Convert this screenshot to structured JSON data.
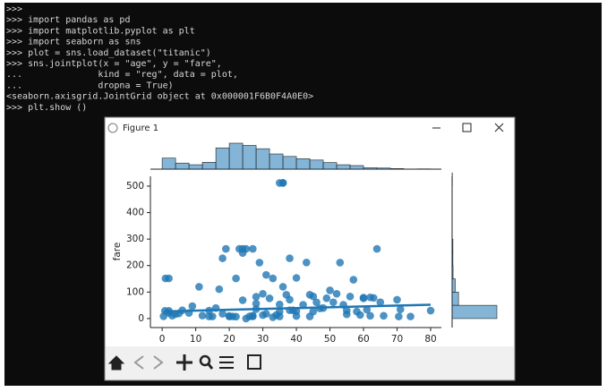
{
  "terminal": {
    "lines": [
      ">>>",
      ">>> import pandas as pd",
      ">>> import matplotlib.pyplot as plt",
      ">>> import seaborn as sns",
      ">>> plot = sns.load_dataset(\"titanic\")",
      ">>> sns.jointplot(x = \"age\", y = \"fare\",",
      "...              kind = \"reg\", data = plot,",
      "...              dropna = True)",
      "<seaborn.axisgrid.JointGrid object at 0x000001F6B0F4A0E0>",
      ">>> plt.show ()"
    ]
  },
  "window": {
    "title": "Figure 1"
  },
  "chart_data": {
    "type": "scatter",
    "ylabel": "fare",
    "color": "#1f77b4",
    "xlim": [
      -3.5,
      83.2
    ],
    "ylim": [
      -34,
      537
    ],
    "xticks": [
      0,
      10,
      20,
      30,
      40,
      50,
      60,
      70,
      80
    ],
    "yticks": [
      0,
      100,
      200,
      300,
      400,
      500
    ],
    "x": [
      22,
      38,
      26,
      35,
      35,
      54,
      2,
      27,
      14,
      4,
      58,
      20,
      39,
      14,
      55,
      2,
      31,
      35,
      34,
      15,
      28,
      8,
      38,
      19,
      40,
      66,
      28,
      42,
      21,
      18,
      3,
      40,
      27,
      23,
      24,
      25,
      27,
      64,
      35,
      36,
      36,
      17,
      45,
      49,
      18,
      33,
      2,
      1,
      22,
      30,
      50,
      60,
      62,
      71,
      70,
      74,
      80,
      65,
      61,
      56,
      48,
      47,
      36,
      37,
      32,
      29,
      40,
      24,
      38,
      31,
      43,
      53,
      46,
      52,
      44,
      11,
      6,
      9,
      0.83,
      0.42,
      5,
      12,
      16,
      60,
      70.5,
      57,
      51,
      63,
      45,
      33,
      20,
      25,
      30,
      44,
      28,
      24,
      62,
      55,
      59
    ],
    "values": [
      7.25,
      71.3,
      7.9,
      53.1,
      8.05,
      51.9,
      21.1,
      11.1,
      30.1,
      16.7,
      26.6,
      8.05,
      31.3,
      7.85,
      16,
      29.1,
      18,
      26,
      13,
      8.03,
      35.5,
      21.1,
      31.4,
      263,
      27.7,
      10.5,
      82.2,
      52,
      8.05,
      18,
      11.1,
      9.5,
      7.8,
      263,
      263,
      263,
      263,
      263,
      512,
      512,
      512.5,
      110.9,
      83.5,
      76.7,
      227.5,
      151.6,
      151.6,
      151.5,
      151.6,
      93.5,
      106.4,
      79.2,
      80,
      34.7,
      71,
      7.8,
      30,
      61.9,
      33.5,
      83.2,
      39.6,
      38.5,
      120,
      90,
      76.3,
      211.3,
      153.5,
      247.5,
      227.5,
      164.9,
      211.5,
      211.3,
      61.2,
      93.5,
      90,
      120,
      31.3,
      46.9,
      29,
      8.5,
      19.3,
      11.2,
      39.7,
      76.3,
      7.75,
      146.5,
      61.4,
      77.9,
      26.5,
      5,
      9.5,
      0,
      13,
      7.9,
      56.5,
      69.3,
      10.5,
      30.5,
      13.5
    ],
    "fit": {
      "x": [
        0.42,
        80
      ],
      "values": [
        27,
        52
      ]
    },
    "marginal_x": {
      "bins": [
        0,
        4,
        8,
        12,
        16,
        20,
        24,
        28,
        32,
        36,
        40,
        44,
        48,
        52,
        56,
        60,
        64,
        68,
        72,
        76,
        80
      ],
      "counts": [
        40,
        22,
        16,
        25,
        77,
        94,
        86,
        74,
        55,
        46,
        38,
        33,
        24,
        16,
        13,
        5,
        4,
        2,
        0,
        1
      ]
    },
    "marginal_y": {
      "bins": [
        0,
        50,
        100,
        150,
        200,
        250,
        300,
        350,
        400,
        450,
        500,
        550
      ],
      "counts": [
        560,
        80,
        40,
        12,
        10,
        10,
        0,
        0,
        0,
        0,
        3
      ]
    }
  }
}
